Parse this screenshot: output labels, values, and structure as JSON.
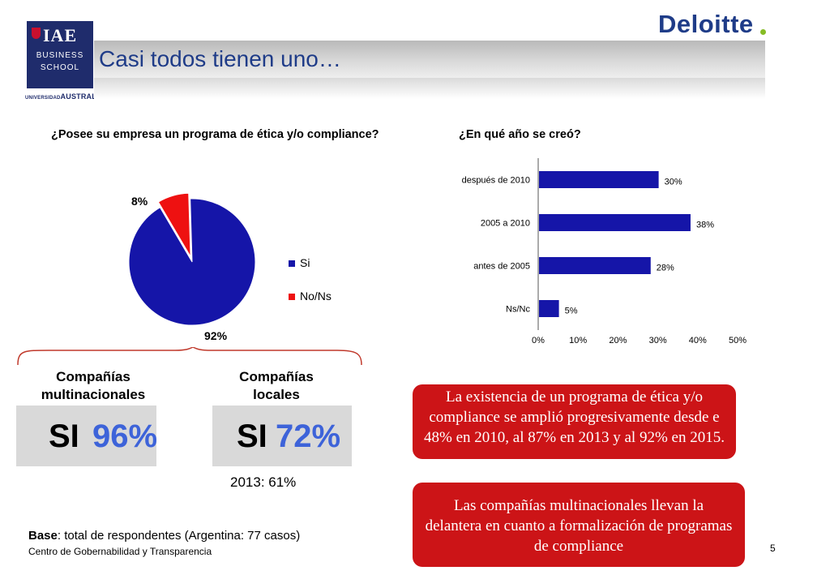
{
  "logo": {
    "iae": "IAE",
    "line1": "BUSINESS",
    "line2": "SCHOOL",
    "university_small": "UNIVERSIDAD",
    "university": "AUSTRAL"
  },
  "brand": {
    "name": "Deloitte",
    "dot_color": "#86bc25",
    "color": "#1f3c88"
  },
  "title": "Casi todos tienen uno…",
  "colors": {
    "blue": "#1515a8",
    "red": "#ee1111",
    "accent_pct": "#3d63d9",
    "box_red": "#cc1417"
  },
  "chart_data": [
    {
      "type": "pie",
      "title": "¿Posee su empresa un programa de ética y/o compliance?",
      "categories": [
        "Si",
        "No/Ns"
      ],
      "values": [
        92,
        8
      ],
      "labels": [
        "92%",
        "8%"
      ],
      "legend": [
        "Si",
        "No/Ns"
      ],
      "legend_position": "right",
      "colors": [
        "#1515a8",
        "#ee1111"
      ]
    },
    {
      "type": "bar",
      "orientation": "horizontal",
      "title": "¿En qué año se creó?",
      "categories": [
        "después de 2010",
        "2005 a 2010",
        "antes de 2005",
        "Ns/Nc"
      ],
      "values": [
        30,
        38,
        28,
        5
      ],
      "labels": [
        "30%",
        "38%",
        "28%",
        "5%"
      ],
      "xlim": [
        0,
        50
      ],
      "xticks": [
        "0%",
        "10%",
        "20%",
        "30%",
        "40%",
        "50%"
      ],
      "grid": false,
      "color": "#1515a8"
    }
  ],
  "comparison": {
    "multi_heading_1": "Compañías",
    "multi_heading_2": "multinacionales",
    "local_heading_1": "Compañías",
    "local_heading_2": "locales",
    "si": "SI",
    "multi_pct": "96%",
    "local_pct": "72%",
    "local_note": "2013: 61%"
  },
  "callouts": {
    "existence": "La existencia de un programa de ética y/o compliance se amplió progresivamente desde e 48% en 2010, al 87% en 2013 y al 92% en 2015.",
    "multinational_lead": "Las compañías multinacionales llevan la delantera en cuanto a formalización de programas de compliance"
  },
  "footer": {
    "base_label": "Base",
    "base_text": ": total de respondentes (Argentina: 77 casos)",
    "org": "Centro de Gobernabilidad y Transparencia",
    "page": "5"
  }
}
